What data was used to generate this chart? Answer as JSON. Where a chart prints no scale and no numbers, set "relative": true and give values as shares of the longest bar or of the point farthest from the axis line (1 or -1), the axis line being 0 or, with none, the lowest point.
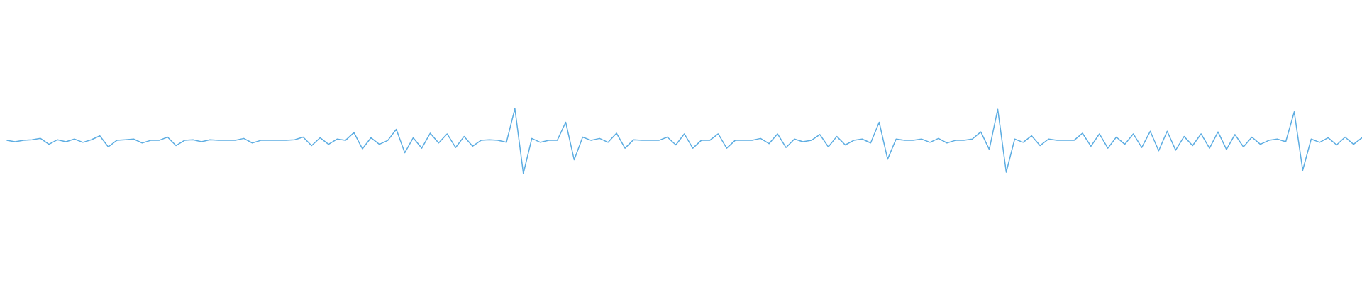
{
  "chart_data": {
    "type": "line",
    "relative": true,
    "categories": [
      null,
      null,
      null,
      null,
      null,
      null,
      null,
      null,
      null,
      null,
      null,
      null,
      null,
      null,
      null,
      null,
      null,
      null,
      null,
      null,
      null,
      null,
      null,
      null,
      null,
      null,
      null,
      null,
      null,
      null,
      null,
      null,
      null,
      null,
      null,
      null,
      null,
      null,
      null,
      null,
      null,
      null,
      null,
      null,
      null,
      null,
      null,
      null,
      null,
      null,
      null,
      null,
      null,
      null,
      null,
      null,
      null,
      null,
      null,
      null,
      null,
      null,
      null,
      null,
      null,
      null,
      null,
      null,
      null,
      null,
      null,
      null,
      null,
      null,
      null,
      null,
      null,
      null,
      null,
      null,
      null,
      null,
      null,
      null,
      null,
      null,
      null,
      null,
      null,
      null,
      null,
      null,
      null,
      null,
      null,
      null,
      null,
      null,
      null,
      null,
      null,
      null,
      null,
      null,
      null,
      null,
      null,
      null,
      null,
      null,
      null,
      null,
      null,
      null,
      null,
      null,
      null,
      null,
      null,
      null,
      null,
      null,
      null,
      null,
      null,
      null,
      null,
      null,
      null,
      null,
      null,
      null,
      null,
      null,
      null,
      null,
      null,
      null,
      null,
      null,
      null,
      null,
      null,
      null,
      null,
      null,
      null,
      null,
      null,
      null,
      null,
      null,
      null,
      null,
      null,
      null,
      null,
      null,
      null,
      null,
      null
    ],
    "series": [
      {
        "color": "#5dade2",
        "values": [
          0.51,
          0.49,
          0.51,
          0.52,
          0.54,
          0.45,
          0.52,
          0.49,
          0.53,
          0.48,
          0.52,
          0.58,
          0.41,
          0.51,
          0.52,
          0.53,
          0.47,
          0.51,
          0.51,
          0.56,
          0.43,
          0.51,
          0.52,
          0.49,
          0.52,
          0.51,
          0.51,
          0.51,
          0.54,
          0.47,
          0.51,
          0.51,
          0.51,
          0.51,
          0.52,
          0.56,
          0.43,
          0.55,
          0.45,
          0.53,
          0.51,
          0.63,
          0.38,
          0.55,
          0.45,
          0.51,
          0.68,
          0.32,
          0.55,
          0.39,
          0.62,
          0.47,
          0.61,
          0.4,
          0.57,
          0.42,
          0.51,
          0.52,
          0.51,
          0.48,
          1.0,
          0.0,
          0.54,
          0.48,
          0.51,
          0.51,
          0.79,
          0.21,
          0.56,
          0.51,
          0.54,
          0.48,
          0.62,
          0.39,
          0.52,
          0.51,
          0.51,
          0.51,
          0.56,
          0.44,
          0.61,
          0.39,
          0.51,
          0.51,
          0.61,
          0.39,
          0.51,
          0.51,
          0.51,
          0.54,
          0.46,
          0.61,
          0.4,
          0.53,
          0.49,
          0.51,
          0.6,
          0.41,
          0.57,
          0.44,
          0.51,
          0.53,
          0.47,
          0.79,
          0.22,
          0.53,
          0.51,
          0.51,
          0.53,
          0.48,
          0.54,
          0.47,
          0.51,
          0.51,
          0.53,
          0.64,
          0.37,
          0.99,
          0.02,
          0.53,
          0.48,
          0.58,
          0.43,
          0.53,
          0.51,
          0.51,
          0.51,
          0.62,
          0.42,
          0.61,
          0.39,
          0.56,
          0.45,
          0.61,
          0.4,
          0.65,
          0.35,
          0.65,
          0.36,
          0.57,
          0.43,
          0.61,
          0.39,
          0.64,
          0.37,
          0.6,
          0.41,
          0.56,
          0.45,
          0.51,
          0.53,
          0.49,
          0.95,
          0.05,
          0.53,
          0.48,
          0.55,
          0.44,
          0.56,
          0.45,
          0.55
        ]
      }
    ]
  }
}
